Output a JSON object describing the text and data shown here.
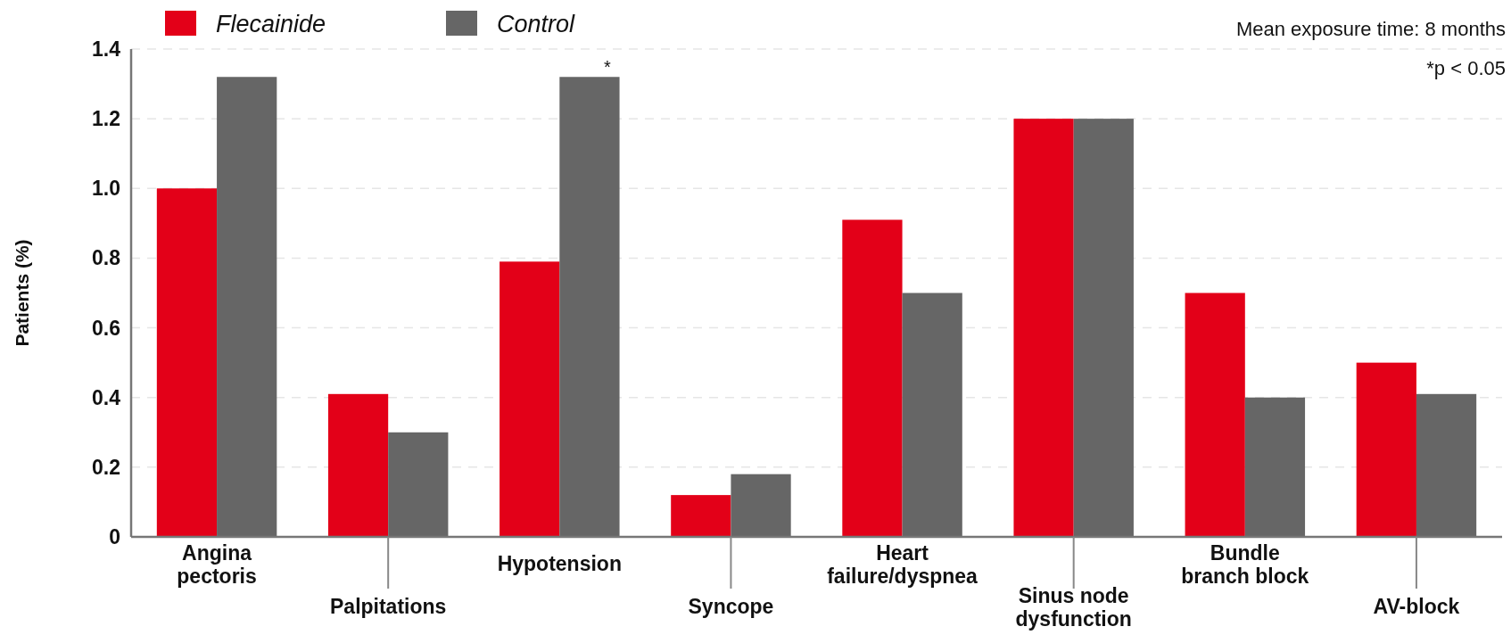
{
  "chart_data": {
    "type": "bar",
    "ylabel": "Patients (%)",
    "categories": [
      "Angina\npectoris",
      "Palpitations",
      "Hypotension",
      "Syncope",
      "Heart\nfailure/dyspnea",
      "Sinus node\ndysfunction",
      "Bundle\nbranch block",
      "AV-block"
    ],
    "series": [
      {
        "name": "Flecainide",
        "color": "#e30018",
        "values": [
          1.0,
          0.41,
          0.79,
          0.12,
          0.91,
          1.2,
          0.7,
          0.5
        ]
      },
      {
        "name": "Control",
        "color": "#666666",
        "values": [
          1.32,
          0.3,
          1.32,
          0.18,
          0.7,
          1.2,
          0.4,
          0.41
        ]
      }
    ],
    "ylim": [
      0,
      1.4
    ],
    "yticks": [
      0,
      {
        "value": 0.2,
        "label": "0.2"
      },
      {
        "value": 0.4,
        "label": "0.4"
      },
      {
        "value": 0.6,
        "label": "0.6"
      },
      {
        "value": 0.8,
        "label": "0.8"
      },
      {
        "value": 1,
        "label": "1.0"
      },
      {
        "value": 1.2,
        "label": "1.2"
      },
      {
        "value": 1.4,
        "label": "1.4"
      }
    ],
    "grid": "y",
    "legend": "top left",
    "annotations": [
      "Mean exposure time: 8 months",
      "*p < 0.05",
      {
        "text": "*",
        "x": "Hypotension",
        "y": 1.32
      }
    ]
  }
}
